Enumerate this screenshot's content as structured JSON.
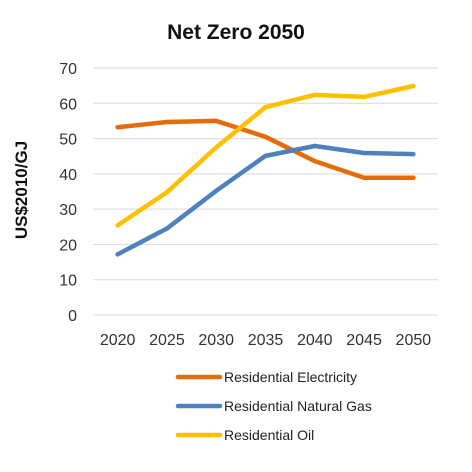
{
  "chart_data": {
    "type": "line",
    "title": "Net Zero 2050",
    "xlabel": "",
    "ylabel": "US$2010/GJ",
    "categories": [
      "2020",
      "2025",
      "2030",
      "2035",
      "2040",
      "2045",
      "2050"
    ],
    "ylim": [
      0,
      70
    ],
    "yticks": [
      0,
      10,
      20,
      30,
      40,
      50,
      60,
      70
    ],
    "grid": true,
    "legend_position": "bottom",
    "series": [
      {
        "name": "Residential Electricity",
        "color": "#E46C0A",
        "values": [
          53.2,
          54.7,
          55.0,
          50.5,
          43.6,
          38.9,
          38.9
        ]
      },
      {
        "name": "Residential Natural Gas",
        "color": "#4F81BD",
        "values": [
          17.2,
          24.5,
          35.2,
          45.1,
          47.9,
          45.9,
          45.6
        ]
      },
      {
        "name": "Residential Oil",
        "color": "#FFC000",
        "values": [
          25.4,
          34.8,
          47.5,
          58.9,
          62.4,
          61.8,
          64.9
        ]
      }
    ]
  }
}
